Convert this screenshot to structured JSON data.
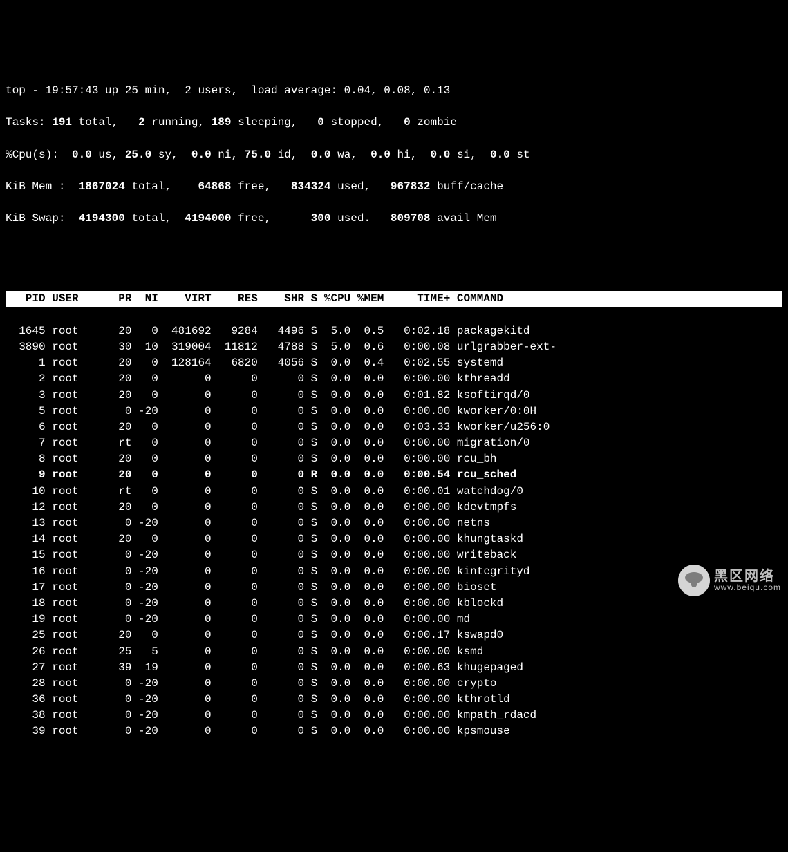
{
  "summary": {
    "line1_a": "top - 19:57:43 up 25 min,  2 users,  load average: 0.04, 0.08, 0.13",
    "line2_a": "Tasks: ",
    "line2_b": "191 ",
    "line2_c": "total,   ",
    "line2_d": "2 ",
    "line2_e": "running, ",
    "line2_f": "189 ",
    "line2_g": "sleeping,   ",
    "line2_h": "0 ",
    "line2_i": "stopped,   ",
    "line2_j": "0 ",
    "line2_k": "zombie",
    "line3_a": "%Cpu(s):  ",
    "line3_b": "0.0 ",
    "line3_c": "us, ",
    "line3_d": "25.0 ",
    "line3_e": "sy,  ",
    "line3_f": "0.0 ",
    "line3_g": "ni, ",
    "line3_h": "75.0 ",
    "line3_i": "id,  ",
    "line3_j": "0.0 ",
    "line3_k": "wa,  ",
    "line3_l": "0.0 ",
    "line3_m": "hi,  ",
    "line3_n": "0.0 ",
    "line3_o": "si,  ",
    "line3_p": "0.0 ",
    "line3_q": "st",
    "line4_a": "KiB Mem : ",
    "line4_b": " 1867024 ",
    "line4_c": "total,   ",
    "line4_d": " 64868 ",
    "line4_e": "free,   ",
    "line4_f": "834324 ",
    "line4_g": "used,   ",
    "line4_h": "967832 ",
    "line4_i": "buff/cache",
    "line5_a": "KiB Swap: ",
    "line5_b": " 4194300 ",
    "line5_c": "total,  ",
    "line5_d": "4194000 ",
    "line5_e": "free,      ",
    "line5_f": "300 ",
    "line5_g": "used.   ",
    "line5_h": "809708 ",
    "line5_i": "avail Mem"
  },
  "columns": {
    "hdr": "   PID USER      PR  NI    VIRT    RES    SHR S %CPU %MEM     TIME+ COMMAND            "
  },
  "rows": [
    {
      "pid": "1645",
      "user": "root",
      "pr": "20",
      "ni": "0",
      "virt": "481692",
      "res": "9284",
      "shr": "4496",
      "s": "S",
      "cpu": "5.0",
      "mem": "0.5",
      "time": "0:02.18",
      "cmd": "packagekitd",
      "bold": false
    },
    {
      "pid": "3890",
      "user": "root",
      "pr": "30",
      "ni": "10",
      "virt": "319004",
      "res": "11812",
      "shr": "4788",
      "s": "S",
      "cpu": "5.0",
      "mem": "0.6",
      "time": "0:00.08",
      "cmd": "urlgrabber-ext-",
      "bold": false
    },
    {
      "pid": "1",
      "user": "root",
      "pr": "20",
      "ni": "0",
      "virt": "128164",
      "res": "6820",
      "shr": "4056",
      "s": "S",
      "cpu": "0.0",
      "mem": "0.4",
      "time": "0:02.55",
      "cmd": "systemd",
      "bold": false
    },
    {
      "pid": "2",
      "user": "root",
      "pr": "20",
      "ni": "0",
      "virt": "0",
      "res": "0",
      "shr": "0",
      "s": "S",
      "cpu": "0.0",
      "mem": "0.0",
      "time": "0:00.00",
      "cmd": "kthreadd",
      "bold": false
    },
    {
      "pid": "3",
      "user": "root",
      "pr": "20",
      "ni": "0",
      "virt": "0",
      "res": "0",
      "shr": "0",
      "s": "S",
      "cpu": "0.0",
      "mem": "0.0",
      "time": "0:01.82",
      "cmd": "ksoftirqd/0",
      "bold": false
    },
    {
      "pid": "5",
      "user": "root",
      "pr": "0",
      "ni": "-20",
      "virt": "0",
      "res": "0",
      "shr": "0",
      "s": "S",
      "cpu": "0.0",
      "mem": "0.0",
      "time": "0:00.00",
      "cmd": "kworker/0:0H",
      "bold": false
    },
    {
      "pid": "6",
      "user": "root",
      "pr": "20",
      "ni": "0",
      "virt": "0",
      "res": "0",
      "shr": "0",
      "s": "S",
      "cpu": "0.0",
      "mem": "0.0",
      "time": "0:03.33",
      "cmd": "kworker/u256:0",
      "bold": false
    },
    {
      "pid": "7",
      "user": "root",
      "pr": "rt",
      "ni": "0",
      "virt": "0",
      "res": "0",
      "shr": "0",
      "s": "S",
      "cpu": "0.0",
      "mem": "0.0",
      "time": "0:00.00",
      "cmd": "migration/0",
      "bold": false
    },
    {
      "pid": "8",
      "user": "root",
      "pr": "20",
      "ni": "0",
      "virt": "0",
      "res": "0",
      "shr": "0",
      "s": "S",
      "cpu": "0.0",
      "mem": "0.0",
      "time": "0:00.00",
      "cmd": "rcu_bh",
      "bold": false
    },
    {
      "pid": "9",
      "user": "root",
      "pr": "20",
      "ni": "0",
      "virt": "0",
      "res": "0",
      "shr": "0",
      "s": "R",
      "cpu": "0.0",
      "mem": "0.0",
      "time": "0:00.54",
      "cmd": "rcu_sched",
      "bold": true
    },
    {
      "pid": "10",
      "user": "root",
      "pr": "rt",
      "ni": "0",
      "virt": "0",
      "res": "0",
      "shr": "0",
      "s": "S",
      "cpu": "0.0",
      "mem": "0.0",
      "time": "0:00.01",
      "cmd": "watchdog/0",
      "bold": false
    },
    {
      "pid": "12",
      "user": "root",
      "pr": "20",
      "ni": "0",
      "virt": "0",
      "res": "0",
      "shr": "0",
      "s": "S",
      "cpu": "0.0",
      "mem": "0.0",
      "time": "0:00.00",
      "cmd": "kdevtmpfs",
      "bold": false
    },
    {
      "pid": "13",
      "user": "root",
      "pr": "0",
      "ni": "-20",
      "virt": "0",
      "res": "0",
      "shr": "0",
      "s": "S",
      "cpu": "0.0",
      "mem": "0.0",
      "time": "0:00.00",
      "cmd": "netns",
      "bold": false
    },
    {
      "pid": "14",
      "user": "root",
      "pr": "20",
      "ni": "0",
      "virt": "0",
      "res": "0",
      "shr": "0",
      "s": "S",
      "cpu": "0.0",
      "mem": "0.0",
      "time": "0:00.00",
      "cmd": "khungtaskd",
      "bold": false
    },
    {
      "pid": "15",
      "user": "root",
      "pr": "0",
      "ni": "-20",
      "virt": "0",
      "res": "0",
      "shr": "0",
      "s": "S",
      "cpu": "0.0",
      "mem": "0.0",
      "time": "0:00.00",
      "cmd": "writeback",
      "bold": false
    },
    {
      "pid": "16",
      "user": "root",
      "pr": "0",
      "ni": "-20",
      "virt": "0",
      "res": "0",
      "shr": "0",
      "s": "S",
      "cpu": "0.0",
      "mem": "0.0",
      "time": "0:00.00",
      "cmd": "kintegrityd",
      "bold": false
    },
    {
      "pid": "17",
      "user": "root",
      "pr": "0",
      "ni": "-20",
      "virt": "0",
      "res": "0",
      "shr": "0",
      "s": "S",
      "cpu": "0.0",
      "mem": "0.0",
      "time": "0:00.00",
      "cmd": "bioset",
      "bold": false
    },
    {
      "pid": "18",
      "user": "root",
      "pr": "0",
      "ni": "-20",
      "virt": "0",
      "res": "0",
      "shr": "0",
      "s": "S",
      "cpu": "0.0",
      "mem": "0.0",
      "time": "0:00.00",
      "cmd": "kblockd",
      "bold": false
    },
    {
      "pid": "19",
      "user": "root",
      "pr": "0",
      "ni": "-20",
      "virt": "0",
      "res": "0",
      "shr": "0",
      "s": "S",
      "cpu": "0.0",
      "mem": "0.0",
      "time": "0:00.00",
      "cmd": "md",
      "bold": false
    },
    {
      "pid": "25",
      "user": "root",
      "pr": "20",
      "ni": "0",
      "virt": "0",
      "res": "0",
      "shr": "0",
      "s": "S",
      "cpu": "0.0",
      "mem": "0.0",
      "time": "0:00.17",
      "cmd": "kswapd0",
      "bold": false
    },
    {
      "pid": "26",
      "user": "root",
      "pr": "25",
      "ni": "5",
      "virt": "0",
      "res": "0",
      "shr": "0",
      "s": "S",
      "cpu": "0.0",
      "mem": "0.0",
      "time": "0:00.00",
      "cmd": "ksmd",
      "bold": false
    },
    {
      "pid": "27",
      "user": "root",
      "pr": "39",
      "ni": "19",
      "virt": "0",
      "res": "0",
      "shr": "0",
      "s": "S",
      "cpu": "0.0",
      "mem": "0.0",
      "time": "0:00.63",
      "cmd": "khugepaged",
      "bold": false
    },
    {
      "pid": "28",
      "user": "root",
      "pr": "0",
      "ni": "-20",
      "virt": "0",
      "res": "0",
      "shr": "0",
      "s": "S",
      "cpu": "0.0",
      "mem": "0.0",
      "time": "0:00.00",
      "cmd": "crypto",
      "bold": false
    },
    {
      "pid": "36",
      "user": "root",
      "pr": "0",
      "ni": "-20",
      "virt": "0",
      "res": "0",
      "shr": "0",
      "s": "S",
      "cpu": "0.0",
      "mem": "0.0",
      "time": "0:00.00",
      "cmd": "kthrotld",
      "bold": false
    },
    {
      "pid": "38",
      "user": "root",
      "pr": "0",
      "ni": "-20",
      "virt": "0",
      "res": "0",
      "shr": "0",
      "s": "S",
      "cpu": "0.0",
      "mem": "0.0",
      "time": "0:00.00",
      "cmd": "kmpath_rdacd",
      "bold": false
    },
    {
      "pid": "39",
      "user": "root",
      "pr": "0",
      "ni": "-20",
      "virt": "0",
      "res": "0",
      "shr": "0",
      "s": "S",
      "cpu": "0.0",
      "mem": "0.0",
      "time": "0:00.00",
      "cmd": "kpsmouse",
      "bold": false
    }
  ],
  "watermark": {
    "t1": "黑区网络",
    "t2": "www.beiqu.com"
  },
  "col_widths": {
    "pid": 6,
    "user": 9,
    "pr": 3,
    "ni": 4,
    "virt": 8,
    "res": 7,
    "shr": 7,
    "s": 2,
    "cpu": 5,
    "mem": 5,
    "time": 10,
    "cmd": 16
  }
}
